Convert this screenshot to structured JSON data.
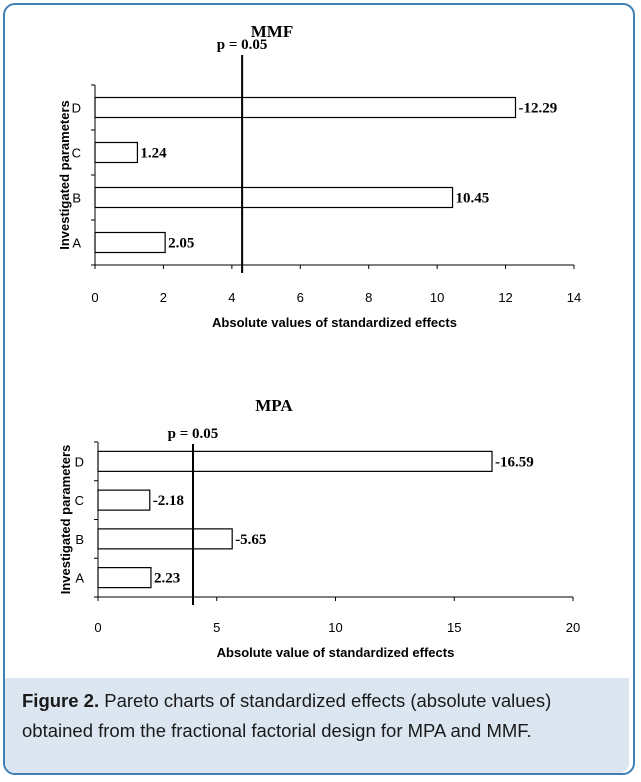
{
  "chart_data": [
    {
      "type": "bar",
      "orientation": "horizontal",
      "title": "MMF",
      "categories": [
        "A",
        "B",
        "C",
        "D"
      ],
      "values": [
        2.05,
        10.45,
        1.24,
        12.29
      ],
      "data_labels": [
        "2.05",
        "10.45",
        "1.24",
        "-12.29"
      ],
      "xlabel": "Absolute values of standardized effects",
      "ylabel": "Investigated parameters",
      "xlim": [
        0,
        14
      ],
      "xticks": [
        0,
        2,
        4,
        6,
        8,
        10,
        12,
        14
      ],
      "reference_line": {
        "label": "p = 0.05",
        "value": 4.3
      }
    },
    {
      "type": "bar",
      "orientation": "horizontal",
      "title": "MPA",
      "categories": [
        "A",
        "B",
        "C",
        "D"
      ],
      "values": [
        2.23,
        5.65,
        2.18,
        16.59
      ],
      "data_labels": [
        "2.23",
        "-5.65",
        "-2.18",
        "-16.59"
      ],
      "xlabel": "Absolute value of standardized effects",
      "ylabel": "Investigated parameters",
      "xlim": [
        0,
        20
      ],
      "xticks": [
        0,
        5,
        10,
        15,
        20
      ],
      "reference_line": {
        "label": "p = 0.05",
        "value": 4.0
      }
    }
  ],
  "caption": {
    "label": "Figure 2.",
    "text": " Pareto charts of standardized effects (absolute values) obtained from the fractional factorial design for MPA and MMF."
  },
  "colors": {
    "frame": "#3f7fb5",
    "caption_bg": "#dbe6f1",
    "bar_fill": "#ffffff",
    "bar_stroke": "#000000"
  }
}
